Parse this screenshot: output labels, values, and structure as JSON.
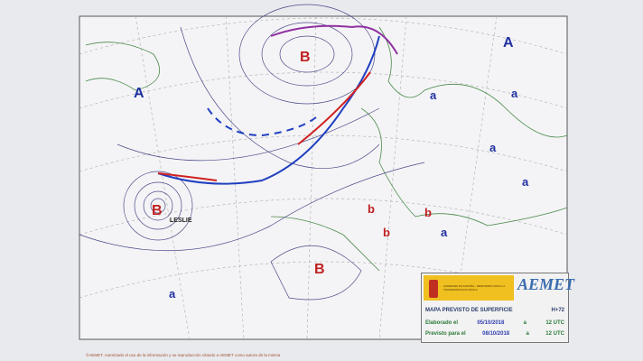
{
  "map": {
    "pressure_labels": {
      "high": "A",
      "low": "B",
      "rel_high": "a",
      "rel_low": "b"
    },
    "storm_name": "LESLIE",
    "front_colors": {
      "cold": "#1f3fc0",
      "warm": "#d02020",
      "occluded": "#9030a0"
    },
    "isobar_color": "#4a4a8a"
  },
  "legend": {
    "logo_text": "AEMET",
    "gov_text": "GOBIERNO DE ESPAÑA · MINISTERIO PARA LA TRANSICIÓN ECOLÓGICA",
    "title": "MAPA PREVISTO DE SUPERFICIE",
    "range": "H+72",
    "elaborated_label": "Elaborado el",
    "elaborated_date": "05/10/2018",
    "elaborated_sep": "a",
    "elaborated_time": "12 UTC",
    "forecast_label": "Previsto para el",
    "forecast_date": "08/10/2018",
    "forecast_sep": "a",
    "forecast_time": "12 UTC"
  },
  "footer": "©AEMET. Autorizado el uso de la información y su reproducción citando a AEMET como autora de la misma"
}
